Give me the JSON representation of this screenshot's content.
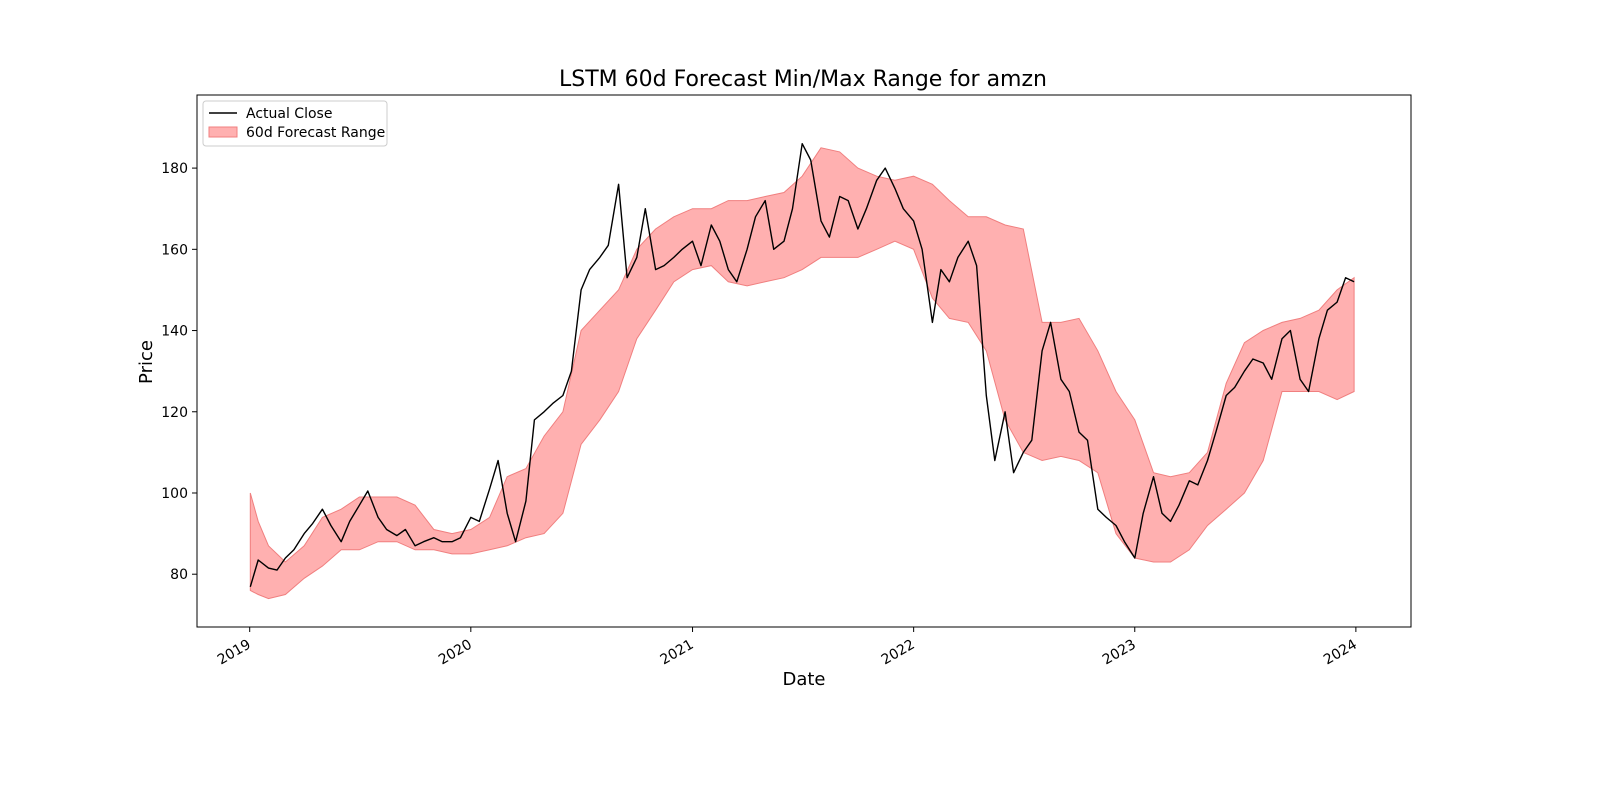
{
  "chart_data": {
    "type": "area",
    "title": "LSTM 60d Forecast Min/Max Range for amzn",
    "xlabel": "Date",
    "ylabel": "Price",
    "xlim": [
      "2018-10-06",
      "2024-04-01"
    ],
    "ylim": [
      67,
      198
    ],
    "x_ticks": [
      "2019",
      "2020",
      "2021",
      "2022",
      "2023",
      "2024"
    ],
    "x_tick_dates": [
      "2019-01-01",
      "2020-01-01",
      "2021-01-01",
      "2022-01-01",
      "2023-01-01",
      "2024-01-01"
    ],
    "y_ticks": [
      80,
      100,
      120,
      140,
      160,
      180
    ],
    "grid": false,
    "legend_position": "top-left",
    "legend": [
      "Actual Close",
      "60d Forecast Range"
    ],
    "colors": {
      "actual": "#000000",
      "band_fill": "#ffb0b0",
      "band_edge": "#f07f7f"
    },
    "series": [
      {
        "name": "Actual Close",
        "type": "line",
        "points": [
          [
            "2019-01-02",
            76.9
          ],
          [
            "2019-01-15",
            83.5
          ],
          [
            "2019-02-01",
            81.5
          ],
          [
            "2019-02-15",
            81.0
          ],
          [
            "2019-03-01",
            84.0
          ],
          [
            "2019-03-15",
            86.0
          ],
          [
            "2019-04-01",
            90.0
          ],
          [
            "2019-04-15",
            92.5
          ],
          [
            "2019-05-01",
            96.0
          ],
          [
            "2019-05-15",
            92.0
          ],
          [
            "2019-06-01",
            88.0
          ],
          [
            "2019-06-15",
            93.0
          ],
          [
            "2019-07-01",
            97.0
          ],
          [
            "2019-07-15",
            100.5
          ],
          [
            "2019-08-01",
            94.0
          ],
          [
            "2019-08-15",
            91.0
          ],
          [
            "2019-09-01",
            89.5
          ],
          [
            "2019-09-15",
            91.0
          ],
          [
            "2019-10-01",
            87.0
          ],
          [
            "2019-10-15",
            88.0
          ],
          [
            "2019-11-01",
            89.0
          ],
          [
            "2019-11-15",
            88.0
          ],
          [
            "2019-12-01",
            88.0
          ],
          [
            "2019-12-15",
            89.0
          ],
          [
            "2020-01-01",
            94.0
          ],
          [
            "2020-01-15",
            93.0
          ],
          [
            "2020-02-01",
            101.0
          ],
          [
            "2020-02-15",
            108.0
          ],
          [
            "2020-03-01",
            95.0
          ],
          [
            "2020-03-15",
            88.0
          ],
          [
            "2020-04-01",
            98.0
          ],
          [
            "2020-04-15",
            118.0
          ],
          [
            "2020-05-01",
            120.0
          ],
          [
            "2020-05-15",
            122.0
          ],
          [
            "2020-06-01",
            124.0
          ],
          [
            "2020-06-15",
            130.0
          ],
          [
            "2020-07-01",
            150.0
          ],
          [
            "2020-07-15",
            155.0
          ],
          [
            "2020-08-01",
            158.0
          ],
          [
            "2020-08-15",
            161.0
          ],
          [
            "2020-09-01",
            176.0
          ],
          [
            "2020-09-15",
            153.0
          ],
          [
            "2020-10-01",
            158.0
          ],
          [
            "2020-10-15",
            170.0
          ],
          [
            "2020-11-01",
            155.0
          ],
          [
            "2020-11-15",
            156.0
          ],
          [
            "2020-12-01",
            158.0
          ],
          [
            "2020-12-15",
            160.0
          ],
          [
            "2021-01-01",
            162.0
          ],
          [
            "2021-01-15",
            156.0
          ],
          [
            "2021-02-01",
            166.0
          ],
          [
            "2021-02-15",
            162.0
          ],
          [
            "2021-03-01",
            155.0
          ],
          [
            "2021-03-15",
            152.0
          ],
          [
            "2021-04-01",
            160.0
          ],
          [
            "2021-04-15",
            168.0
          ],
          [
            "2021-05-01",
            172.0
          ],
          [
            "2021-05-15",
            160.0
          ],
          [
            "2021-06-01",
            162.0
          ],
          [
            "2021-06-15",
            170.0
          ],
          [
            "2021-07-01",
            186.0
          ],
          [
            "2021-07-15",
            182.0
          ],
          [
            "2021-08-01",
            167.0
          ],
          [
            "2021-08-15",
            163.0
          ],
          [
            "2021-09-01",
            173.0
          ],
          [
            "2021-09-15",
            172.0
          ],
          [
            "2021-10-01",
            165.0
          ],
          [
            "2021-10-15",
            170.0
          ],
          [
            "2021-11-01",
            177.0
          ],
          [
            "2021-11-15",
            180.0
          ],
          [
            "2021-12-01",
            175.0
          ],
          [
            "2021-12-15",
            170.0
          ],
          [
            "2022-01-01",
            167.0
          ],
          [
            "2022-01-15",
            160.0
          ],
          [
            "2022-02-01",
            142.0
          ],
          [
            "2022-02-15",
            155.0
          ],
          [
            "2022-03-01",
            152.0
          ],
          [
            "2022-03-15",
            158.0
          ],
          [
            "2022-04-01",
            162.0
          ],
          [
            "2022-04-15",
            156.0
          ],
          [
            "2022-05-01",
            124.0
          ],
          [
            "2022-05-15",
            108.0
          ],
          [
            "2022-06-01",
            120.0
          ],
          [
            "2022-06-15",
            105.0
          ],
          [
            "2022-07-01",
            110.0
          ],
          [
            "2022-07-15",
            113.0
          ],
          [
            "2022-08-01",
            135.0
          ],
          [
            "2022-08-15",
            142.0
          ],
          [
            "2022-09-01",
            128.0
          ],
          [
            "2022-09-15",
            125.0
          ],
          [
            "2022-10-01",
            115.0
          ],
          [
            "2022-10-15",
            113.0
          ],
          [
            "2022-11-01",
            96.0
          ],
          [
            "2022-11-15",
            94.0
          ],
          [
            "2022-12-01",
            92.0
          ],
          [
            "2022-12-15",
            88.0
          ],
          [
            "2023-01-01",
            84.0
          ],
          [
            "2023-01-15",
            95.0
          ],
          [
            "2023-02-01",
            104.0
          ],
          [
            "2023-02-15",
            95.0
          ],
          [
            "2023-03-01",
            93.0
          ],
          [
            "2023-03-15",
            97.0
          ],
          [
            "2023-04-01",
            103.0
          ],
          [
            "2023-04-15",
            102.0
          ],
          [
            "2023-05-01",
            108.0
          ],
          [
            "2023-05-15",
            115.0
          ],
          [
            "2023-06-01",
            124.0
          ],
          [
            "2023-06-15",
            126.0
          ],
          [
            "2023-07-01",
            130.0
          ],
          [
            "2023-07-15",
            133.0
          ],
          [
            "2023-08-01",
            132.0
          ],
          [
            "2023-08-15",
            128.0
          ],
          [
            "2023-09-01",
            138.0
          ],
          [
            "2023-09-15",
            140.0
          ],
          [
            "2023-10-01",
            128.0
          ],
          [
            "2023-10-15",
            125.0
          ],
          [
            "2023-11-01",
            138.0
          ],
          [
            "2023-11-15",
            145.0
          ],
          [
            "2023-12-01",
            147.0
          ],
          [
            "2023-12-15",
            153.0
          ],
          [
            "2023-12-29",
            152.0
          ]
        ]
      },
      {
        "name": "60d Forecast Range",
        "type": "band",
        "points": [
          [
            "2019-01-02",
            76.0,
            100.0
          ],
          [
            "2019-01-15",
            75.0,
            93.0
          ],
          [
            "2019-02-01",
            74.0,
            87.0
          ],
          [
            "2019-03-01",
            75.0,
            83.0
          ],
          [
            "2019-04-01",
            79.0,
            87.0
          ],
          [
            "2019-05-01",
            82.0,
            94.0
          ],
          [
            "2019-06-01",
            86.0,
            96.0
          ],
          [
            "2019-07-01",
            86.0,
            99.0
          ],
          [
            "2019-08-01",
            88.0,
            99.0
          ],
          [
            "2019-09-01",
            88.0,
            99.0
          ],
          [
            "2019-10-01",
            86.0,
            97.0
          ],
          [
            "2019-11-01",
            86.0,
            91.0
          ],
          [
            "2019-12-01",
            85.0,
            90.0
          ],
          [
            "2020-01-01",
            85.0,
            91.0
          ],
          [
            "2020-02-01",
            86.0,
            94.0
          ],
          [
            "2020-03-01",
            87.0,
            104.0
          ],
          [
            "2020-04-01",
            89.0,
            106.0
          ],
          [
            "2020-05-01",
            90.0,
            114.0
          ],
          [
            "2020-06-01",
            95.0,
            120.0
          ],
          [
            "2020-07-01",
            112.0,
            140.0
          ],
          [
            "2020-08-01",
            118.0,
            145.0
          ],
          [
            "2020-09-01",
            125.0,
            150.0
          ],
          [
            "2020-10-01",
            138.0,
            160.0
          ],
          [
            "2020-11-01",
            145.0,
            165.0
          ],
          [
            "2020-12-01",
            152.0,
            168.0
          ],
          [
            "2021-01-01",
            155.0,
            170.0
          ],
          [
            "2021-02-01",
            156.0,
            170.0
          ],
          [
            "2021-03-01",
            152.0,
            172.0
          ],
          [
            "2021-04-01",
            151.0,
            172.0
          ],
          [
            "2021-05-01",
            152.0,
            173.0
          ],
          [
            "2021-06-01",
            153.0,
            174.0
          ],
          [
            "2021-07-01",
            155.0,
            178.0
          ],
          [
            "2021-08-01",
            158.0,
            185.0
          ],
          [
            "2021-09-01",
            158.0,
            184.0
          ],
          [
            "2021-10-01",
            158.0,
            180.0
          ],
          [
            "2021-11-01",
            160.0,
            178.0
          ],
          [
            "2021-12-01",
            162.0,
            177.0
          ],
          [
            "2022-01-01",
            160.0,
            178.0
          ],
          [
            "2022-02-01",
            148.0,
            176.0
          ],
          [
            "2022-03-01",
            143.0,
            172.0
          ],
          [
            "2022-04-01",
            142.0,
            168.0
          ],
          [
            "2022-05-01",
            135.0,
            168.0
          ],
          [
            "2022-06-01",
            118.0,
            166.0
          ],
          [
            "2022-07-01",
            110.0,
            165.0
          ],
          [
            "2022-08-01",
            108.0,
            142.0
          ],
          [
            "2022-09-01",
            109.0,
            142.0
          ],
          [
            "2022-10-01",
            108.0,
            143.0
          ],
          [
            "2022-11-01",
            105.0,
            135.0
          ],
          [
            "2022-12-01",
            90.0,
            125.0
          ],
          [
            "2023-01-01",
            84.0,
            118.0
          ],
          [
            "2023-02-01",
            83.0,
            105.0
          ],
          [
            "2023-03-01",
            83.0,
            104.0
          ],
          [
            "2023-04-01",
            86.0,
            105.0
          ],
          [
            "2023-05-01",
            92.0,
            110.0
          ],
          [
            "2023-06-01",
            96.0,
            127.0
          ],
          [
            "2023-07-01",
            100.0,
            137.0
          ],
          [
            "2023-08-01",
            108.0,
            140.0
          ],
          [
            "2023-09-01",
            125.0,
            142.0
          ],
          [
            "2023-10-01",
            125.0,
            143.0
          ],
          [
            "2023-11-01",
            125.0,
            145.0
          ],
          [
            "2023-12-01",
            123.0,
            150.0
          ],
          [
            "2023-12-29",
            125.0,
            153.0
          ]
        ]
      }
    ]
  }
}
